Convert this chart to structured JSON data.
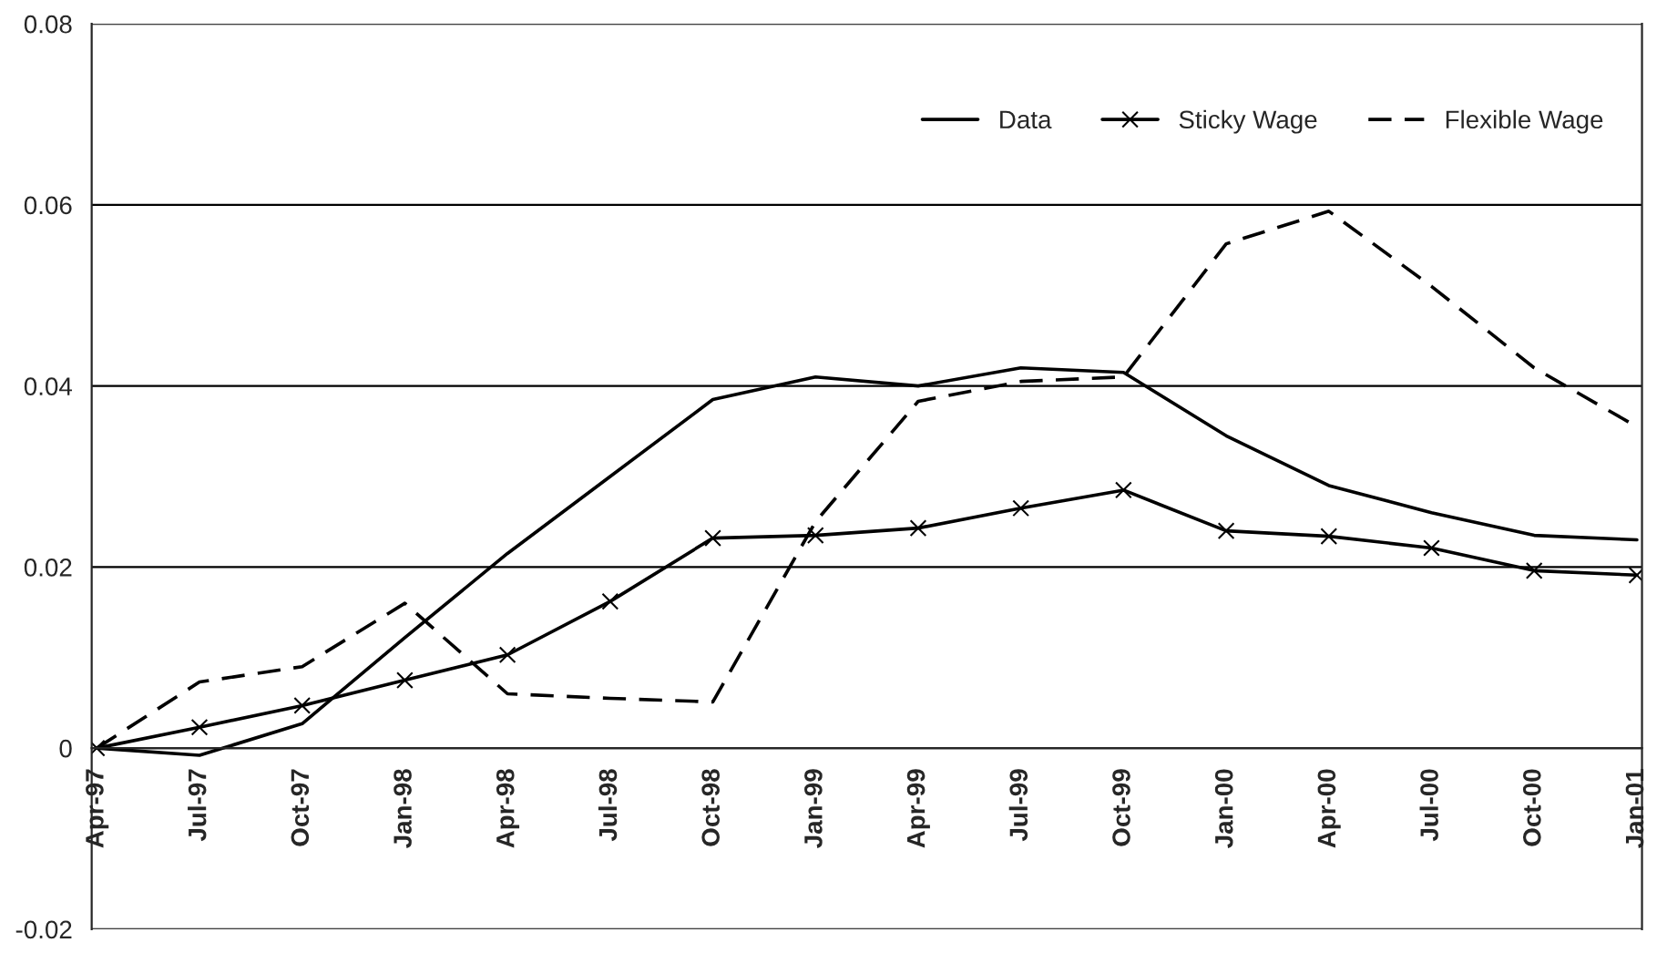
{
  "chart_data": {
    "type": "line",
    "categories": [
      "Apr-97",
      "Jul-97",
      "Oct-97",
      "Jan-98",
      "Apr-98",
      "Jul-98",
      "Oct-98",
      "Jan-99",
      "Apr-99",
      "Jul-99",
      "Oct-99",
      "Jan-00",
      "Apr-00",
      "Jul-00",
      "Oct-00",
      "Jan-01"
    ],
    "series": [
      {
        "name": "Data",
        "color": "#000000",
        "marker": "none",
        "line_style": "solid",
        "values": [
          0,
          -0.0008,
          0.0027,
          0.0122,
          0.0215,
          0.03,
          0.0385,
          0.041,
          0.04,
          0.042,
          0.0415,
          0.0345,
          0.029,
          0.026,
          0.0235,
          0.023
        ]
      },
      {
        "name": "Sticky Wage",
        "color": "#000000",
        "marker": "cross",
        "line_style": "solid",
        "values": [
          0,
          0.0023,
          0.0047,
          0.0075,
          0.0103,
          0.0162,
          0.0232,
          0.0235,
          0.0243,
          0.0265,
          0.0285,
          0.024,
          0.0234,
          0.0221,
          0.0196,
          0.0191
        ]
      },
      {
        "name": "Flexible Wage",
        "color": "#000000",
        "marker": "none",
        "line_style": "dashed",
        "values": [
          0,
          0.0073,
          0.009,
          0.016,
          0.006,
          0.0055,
          0.0051,
          0.025,
          0.0383,
          0.0405,
          0.041,
          0.0557,
          0.0593,
          0.051,
          0.042,
          0.0355
        ]
      }
    ],
    "ylim": [
      -0.02,
      0.08
    ],
    "yticks": [
      -0.02,
      0,
      0.02,
      0.04,
      0.06,
      0.08
    ],
    "grid": "y",
    "legend": "top right"
  }
}
